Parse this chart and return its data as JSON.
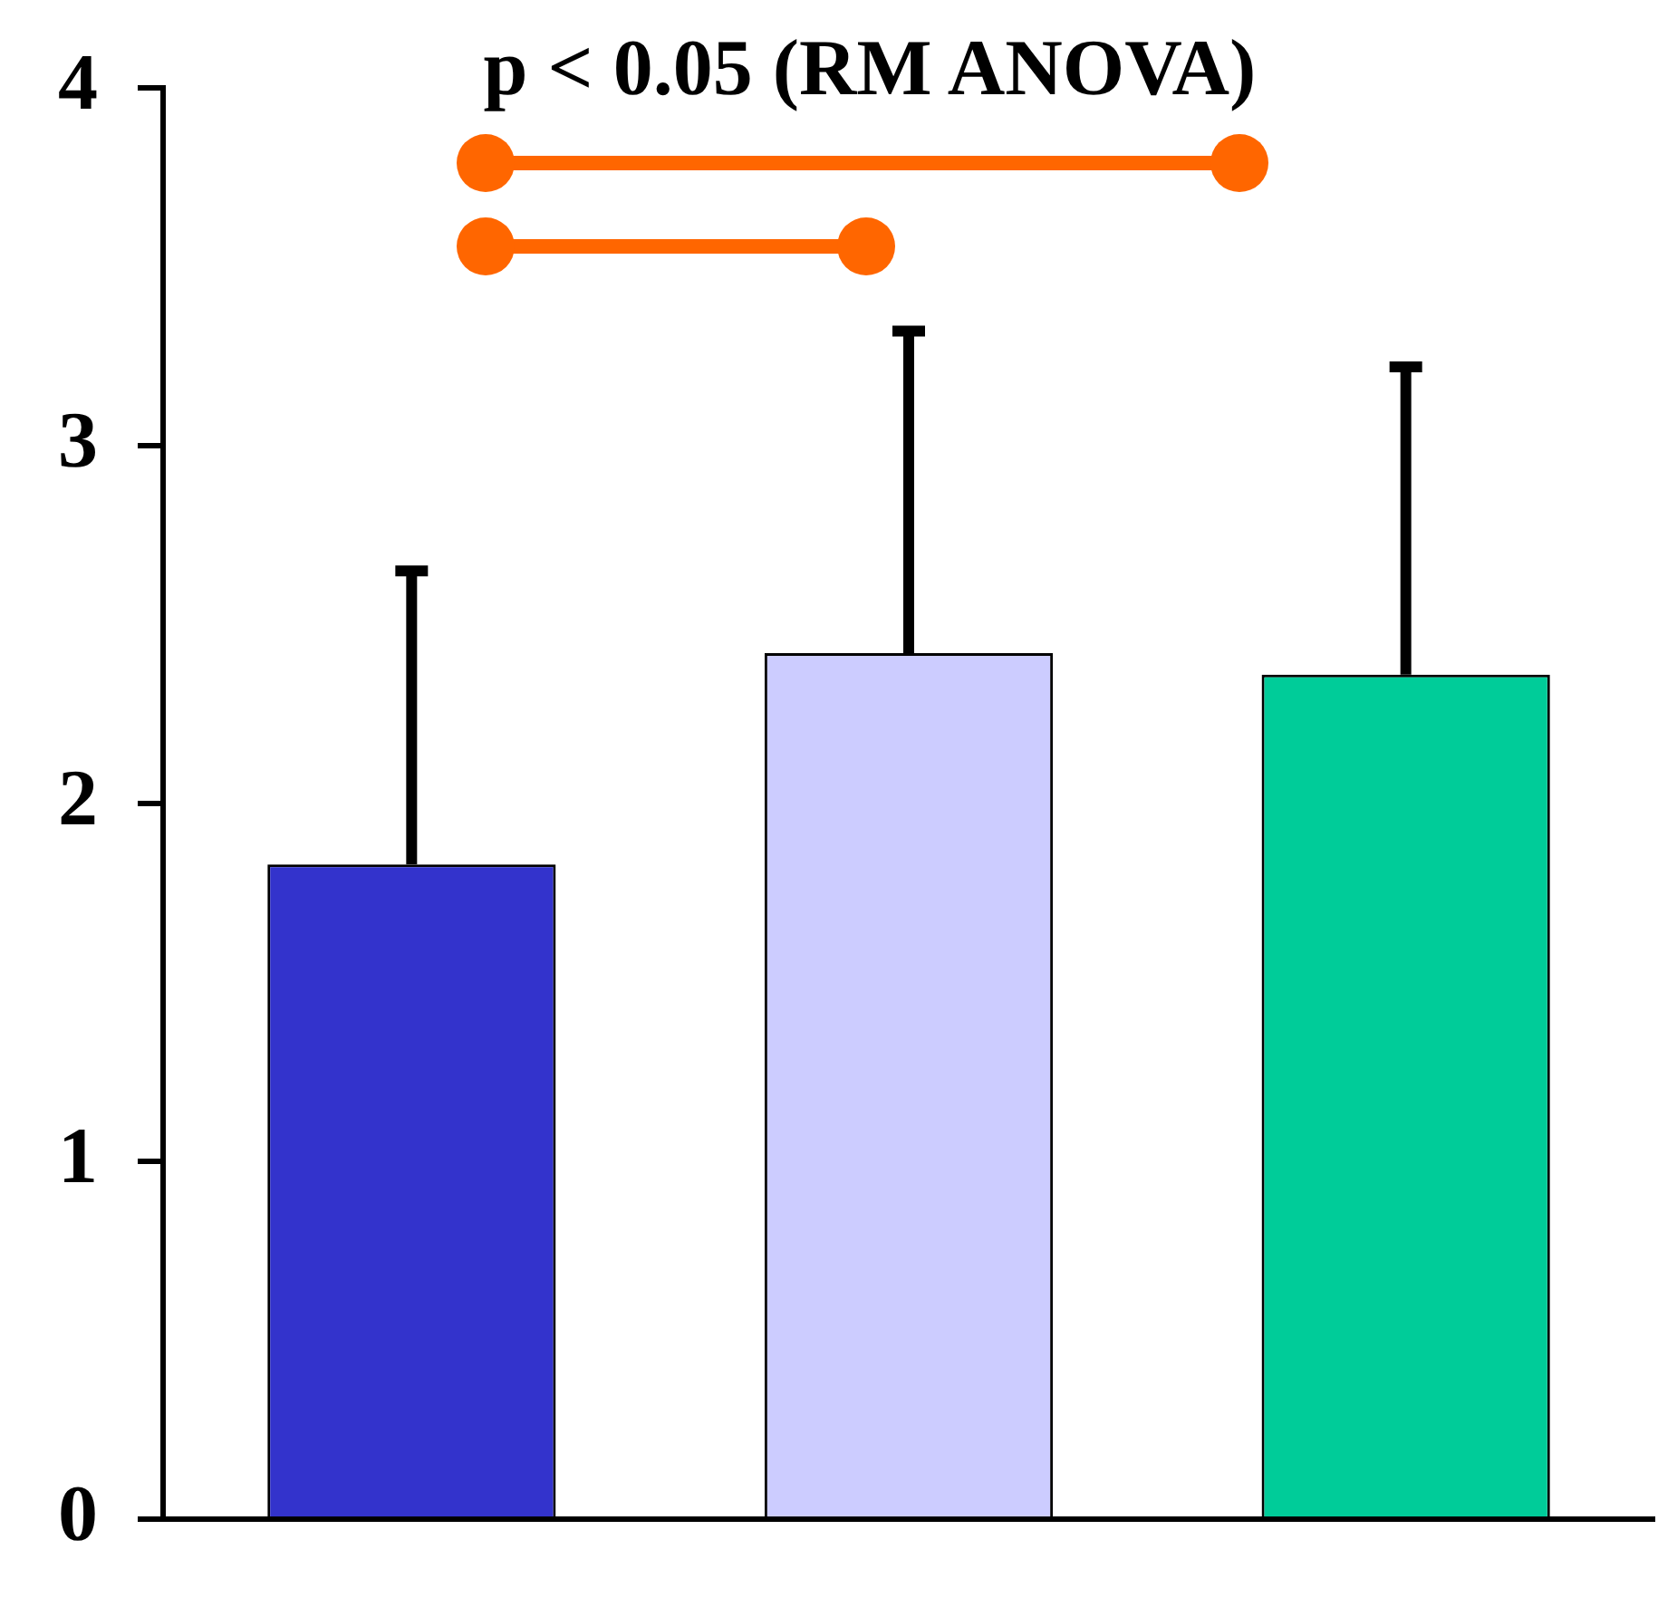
{
  "chart_data": {
    "type": "bar",
    "title": "p < 0.05 (RM  ANOVA)",
    "categories": [
      null,
      null,
      null
    ],
    "values": [
      1.83,
      2.42,
      2.36
    ],
    "colors": [
      "#3333cc",
      "#ccccff",
      "#00cc99"
    ],
    "errors": [
      [
        1.83,
        2.65
      ],
      [
        2.42,
        3.32
      ],
      [
        2.36,
        3.22
      ]
    ],
    "ylim": [
      0,
      4
    ],
    "yticks": [
      0,
      1,
      2,
      3,
      4
    ],
    "grid": false,
    "legend": false
  }
}
